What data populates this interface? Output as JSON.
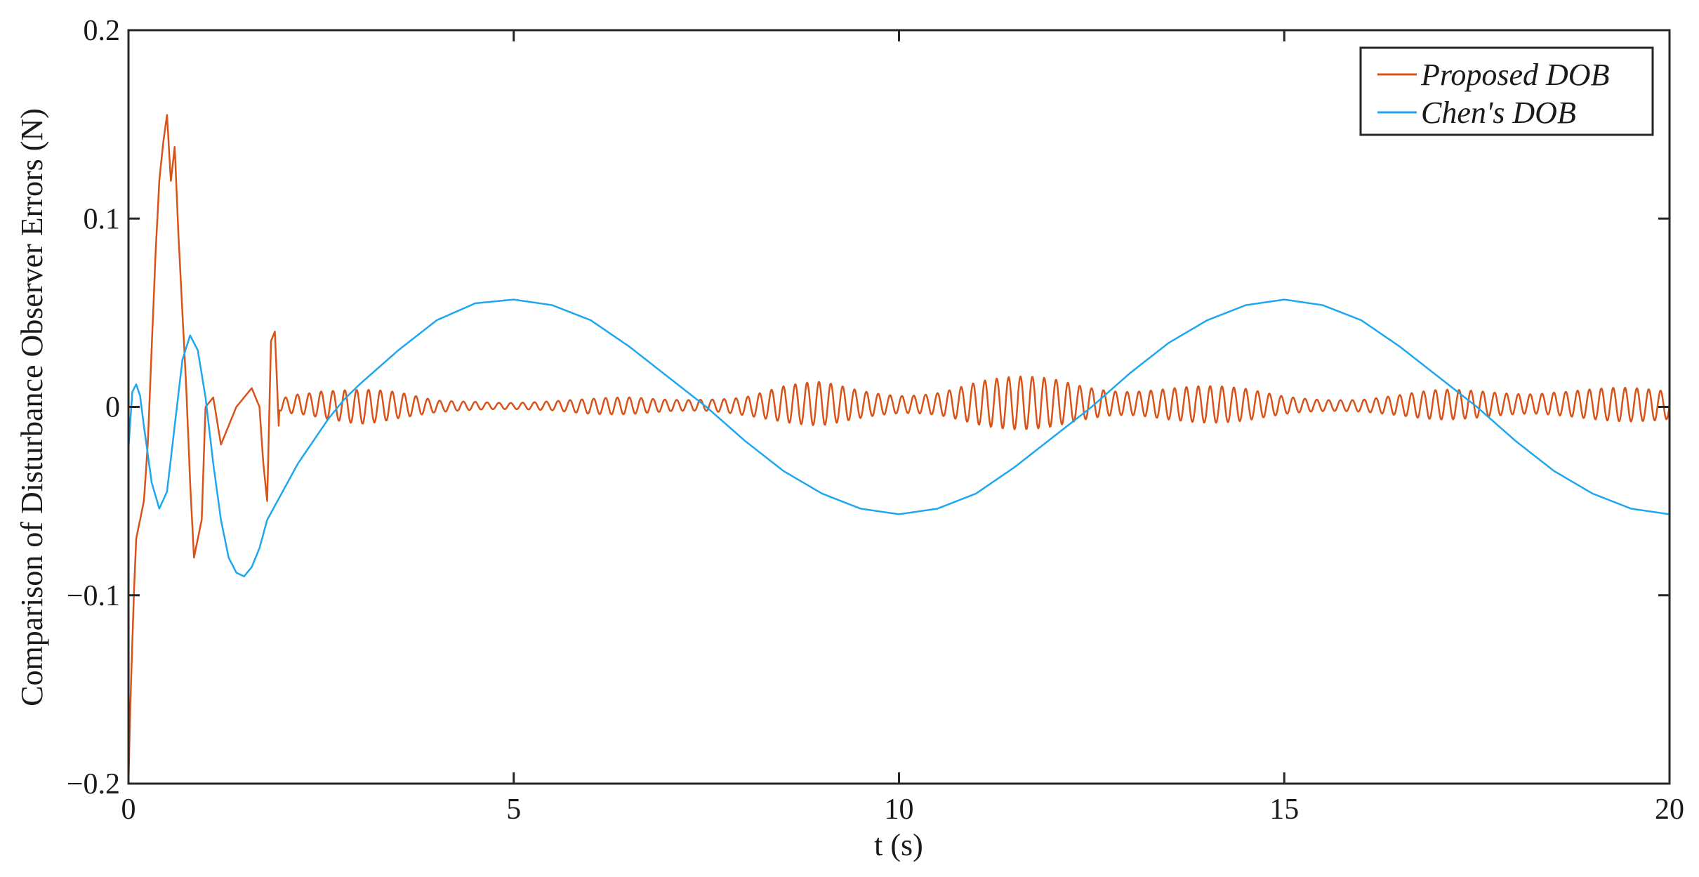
{
  "chart_data": {
    "type": "line",
    "title": "",
    "xlabel": "t (s)",
    "ylabel": "Comparison of Disturbance Observer Errors (N)",
    "xlim": [
      0,
      20
    ],
    "ylim": [
      -0.2,
      0.2
    ],
    "xticks": [
      0,
      5,
      10,
      15,
      20
    ],
    "xtick_labels": [
      "0",
      "5",
      "10",
      "15",
      "20"
    ],
    "yticks": [
      -0.2,
      -0.1,
      0,
      0.1,
      0.2
    ],
    "ytick_labels": [
      "−0.2",
      "−0.1",
      "0",
      "0.1",
      "0.2"
    ],
    "grid": false,
    "legend_position": "top-right",
    "series": [
      {
        "name": "Proposed DOB",
        "color": "#D95319",
        "x": [
          0,
          0.03,
          0.07,
          0.1,
          0.15,
          0.2,
          0.25,
          0.3,
          0.35,
          0.4,
          0.45,
          0.5,
          0.55,
          0.6,
          0.65,
          0.7,
          0.75,
          0.8,
          0.85,
          0.9,
          0.95,
          1.0,
          1.1,
          1.2,
          1.3,
          1.4,
          1.5,
          1.6,
          1.7,
          1.75,
          1.8,
          1.85,
          1.9,
          1.95,
          2.0,
          2.2,
          2.5,
          3.0,
          3.5,
          4.0,
          4.5,
          5.0,
          5.5,
          6.0,
          6.5,
          7.0,
          7.5,
          8.0,
          8.5,
          9.0,
          9.5,
          10.0,
          10.5,
          11.0,
          11.5,
          12.0,
          12.5,
          13.0,
          13.5,
          14.0,
          14.5,
          15.0,
          15.5,
          16.0,
          16.5,
          17.0,
          17.5,
          18.0,
          18.5,
          19.0,
          19.5,
          20.0
        ],
        "values": [
          -0.2,
          -0.15,
          -0.1,
          -0.07,
          -0.06,
          -0.05,
          -0.02,
          0.03,
          0.08,
          0.12,
          0.14,
          0.155,
          0.12,
          0.138,
          0.09,
          0.05,
          0.01,
          -0.04,
          -0.08,
          -0.07,
          -0.06,
          0.0,
          0.005,
          -0.02,
          -0.01,
          0.0,
          0.005,
          0.01,
          0.0,
          -0.03,
          -0.05,
          0.035,
          0.04,
          -0.01,
          0.005,
          0.01,
          0.008,
          0.0,
          0.006,
          0.002,
          0.004,
          0.003,
          0.004,
          0.002,
          0.004,
          0.005,
          0.006,
          0.002,
          0.01,
          0.012,
          0.009,
          0.008,
          0.01,
          0.013,
          0.014,
          0.015,
          0.013,
          0.012,
          0.01,
          0.009,
          0.008,
          0.006,
          0.005,
          0.004,
          0.006,
          0.008,
          0.009,
          0.01,
          0.011,
          0.01,
          0.008,
          0.005
        ],
        "oscillation_amplitude": [
          0,
          0,
          0,
          0,
          0,
          0,
          0,
          0,
          0,
          0,
          0,
          0,
          0,
          0,
          0,
          0,
          0,
          0,
          0,
          0,
          0,
          0,
          0,
          0,
          0,
          0,
          0,
          0,
          0,
          0,
          0,
          0,
          0,
          0,
          0.008,
          0.01,
          0.011,
          0.01,
          0.007,
          0.004,
          0.004,
          0.003,
          0.003,
          0.004,
          0.005,
          0.005,
          0.006,
          0.007,
          0.01,
          0.012,
          0.01,
          0.009,
          0.01,
          0.013,
          0.014,
          0.015,
          0.014,
          0.012,
          0.011,
          0.01,
          0.009,
          0.007,
          0.006,
          0.005,
          0.006,
          0.008,
          0.009,
          0.01,
          0.011,
          0.01,
          0.009,
          0.008
        ]
      },
      {
        "name": "Chen's DOB",
        "color": "#1EA6F0",
        "x": [
          0,
          0.05,
          0.1,
          0.15,
          0.2,
          0.3,
          0.4,
          0.5,
          0.6,
          0.7,
          0.8,
          0.9,
          1.0,
          1.1,
          1.2,
          1.3,
          1.4,
          1.5,
          1.6,
          1.7,
          1.8,
          2.0,
          2.2,
          2.4,
          2.6,
          2.8,
          3.0,
          3.5,
          4.0,
          4.5,
          5.0,
          5.5,
          6.0,
          6.5,
          7.0,
          7.5,
          8.0,
          8.5,
          9.0,
          9.5,
          10.0,
          10.5,
          11.0,
          11.5,
          12.0,
          12.5,
          13.0,
          13.5,
          14.0,
          14.5,
          15.0,
          15.5,
          16.0,
          16.5,
          17.0,
          17.5,
          18.0,
          18.5,
          19.0,
          19.5,
          20.0
        ],
        "values": [
          -0.022,
          0.008,
          0.012,
          0.006,
          -0.01,
          -0.04,
          -0.054,
          -0.045,
          -0.01,
          0.025,
          0.038,
          0.03,
          0.005,
          -0.03,
          -0.06,
          -0.08,
          -0.088,
          -0.09,
          -0.085,
          -0.075,
          -0.06,
          -0.045,
          -0.03,
          -0.018,
          -0.006,
          0.004,
          0.012,
          0.03,
          0.046,
          0.055,
          0.057,
          0.054,
          0.046,
          0.032,
          0.016,
          0.0,
          -0.018,
          -0.034,
          -0.046,
          -0.054,
          -0.057,
          -0.054,
          -0.046,
          -0.032,
          -0.016,
          0.0,
          0.018,
          0.034,
          0.046,
          0.054,
          0.057,
          0.054,
          0.046,
          0.032,
          0.016,
          0.0,
          -0.018,
          -0.034,
          -0.046,
          -0.054,
          -0.057
        ]
      }
    ]
  }
}
